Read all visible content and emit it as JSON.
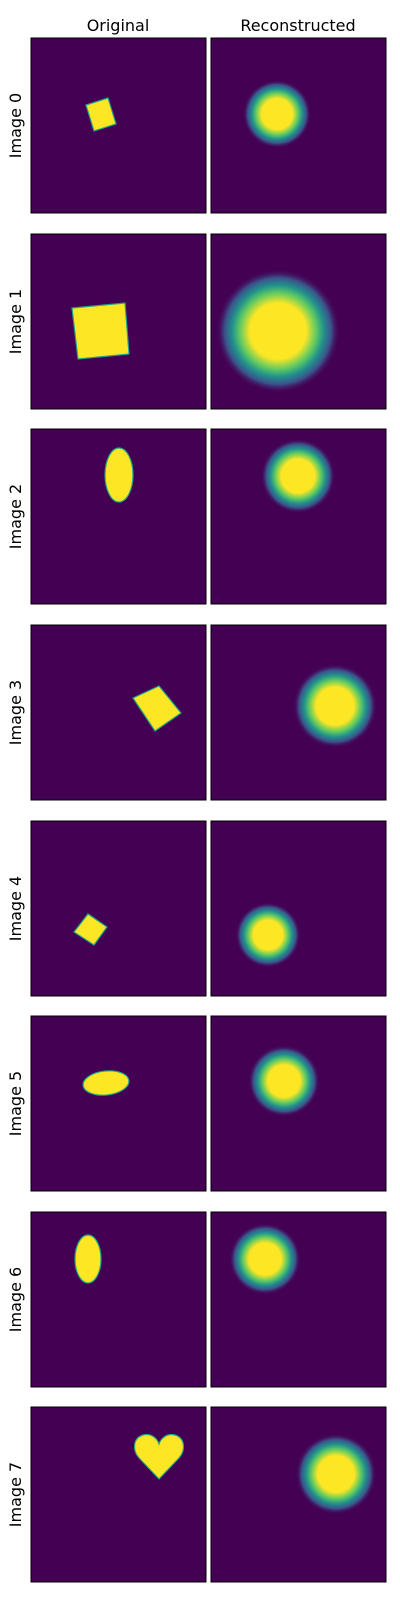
{
  "figure": {
    "columns": [
      "Original",
      "Reconstructed"
    ],
    "colors": {
      "background": "#440154",
      "shape": "#fde725",
      "edge": "#20a486",
      "glow_mid": "#21918c",
      "glow_outer": "#3b528b",
      "frame": "#000000"
    },
    "rows": [
      {
        "label": "Image 0",
        "original": {
          "kind": "square"
        },
        "reconstructed": {
          "kind": "blob"
        }
      },
      {
        "label": "Image 1",
        "original": {
          "kind": "square"
        },
        "reconstructed": {
          "kind": "blob"
        }
      },
      {
        "label": "Image 2",
        "original": {
          "kind": "ellipse"
        },
        "reconstructed": {
          "kind": "blob"
        }
      },
      {
        "label": "Image 3",
        "original": {
          "kind": "square"
        },
        "reconstructed": {
          "kind": "blob"
        }
      },
      {
        "label": "Image 4",
        "original": {
          "kind": "square"
        },
        "reconstructed": {
          "kind": "blob"
        }
      },
      {
        "label": "Image 5",
        "original": {
          "kind": "ellipse"
        },
        "reconstructed": {
          "kind": "blob"
        }
      },
      {
        "label": "Image 6",
        "original": {
          "kind": "ellipse"
        },
        "reconstructed": {
          "kind": "blob"
        }
      },
      {
        "label": "Image 7",
        "original": {
          "kind": "heart"
        },
        "reconstructed": {
          "kind": "blob"
        }
      }
    ]
  }
}
